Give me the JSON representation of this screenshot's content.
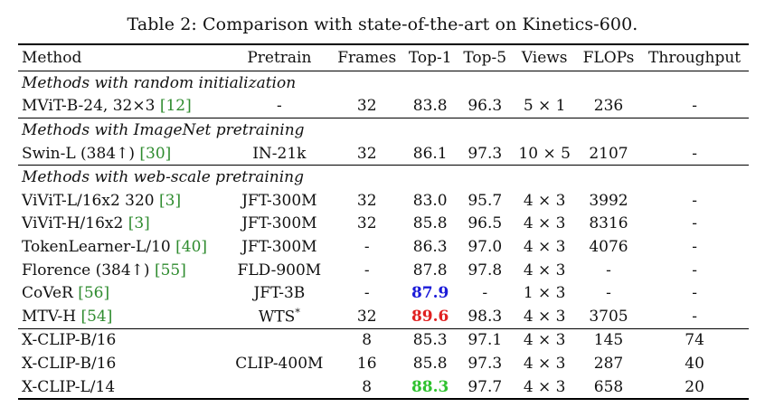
{
  "caption": "Table 2: Comparison with state-of-the-art on Kinetics-600.",
  "headers": [
    "Method",
    "Pretrain",
    "Frames",
    "Top-1",
    "Top-5",
    "Views",
    "FLOPs",
    "Throughput"
  ],
  "sections": [
    {
      "title": "Methods with random initialization",
      "rows": [
        {
          "method": "MViT-B-24, 32×3",
          "cite": "[12]",
          "pretrain": "-",
          "frames": "32",
          "top1": "83.8",
          "top5": "96.3",
          "views": "5 × 1",
          "flops": "236",
          "throughput": "-"
        }
      ]
    },
    {
      "title": "Methods with ImageNet pretraining",
      "rows": [
        {
          "method": "Swin-L (384↑)",
          "cite": "[30]",
          "pretrain": "IN-21k",
          "frames": "32",
          "top1": "86.1",
          "top5": "97.3",
          "views": "10 × 5",
          "flops": "2107",
          "throughput": "-"
        }
      ]
    },
    {
      "title": "Methods with web-scale pretraining",
      "rows": [
        {
          "method": "ViViT-L/16x2 320",
          "cite": "[3]",
          "pretrain": "JFT-300M",
          "frames": "32",
          "top1": "83.0",
          "top5": "95.7",
          "views": "4 × 3",
          "flops": "3992",
          "throughput": "-"
        },
        {
          "method": "ViViT-H/16x2",
          "cite": "[3]",
          "pretrain": "JFT-300M",
          "frames": "32",
          "top1": "85.8",
          "top5": "96.5",
          "views": "4 × 3",
          "flops": "8316",
          "throughput": "-"
        },
        {
          "method": "TokenLearner-L/10",
          "cite": "[40]",
          "pretrain": "JFT-300M",
          "frames": "-",
          "top1": "86.3",
          "top5": "97.0",
          "views": "4 × 3",
          "flops": "4076",
          "throughput": "-"
        },
        {
          "method": "Florence (384↑)",
          "cite": "[55]",
          "pretrain": "FLD-900M",
          "frames": "-",
          "top1": "87.8",
          "top5": "97.8",
          "views": "4 × 3",
          "flops": "-",
          "throughput": "-"
        },
        {
          "method": "CoVeR",
          "cite": "[56]",
          "pretrain": "JFT-3B",
          "frames": "-",
          "top1": "87.9",
          "top5": "-",
          "views": "1 × 3",
          "flops": "-",
          "throughput": "-"
        },
        {
          "method": "MTV-H",
          "cite": "[54]",
          "pretrain": "WTS",
          "pretrain_sup": "*",
          "frames": "32",
          "top1": "89.6",
          "top5": "98.3",
          "views": "4 × 3",
          "flops": "3705",
          "throughput": "-"
        }
      ]
    }
  ],
  "ours": {
    "pretrain": "CLIP-400M",
    "rows": [
      {
        "method": "X-CLIP-B/16",
        "frames": "8",
        "top1": "85.3",
        "top5": "97.1",
        "views": "4 × 3",
        "flops": "145",
        "throughput": "74"
      },
      {
        "method": "X-CLIP-B/16",
        "frames": "16",
        "top1": "85.8",
        "top5": "97.3",
        "views": "4 × 3",
        "flops": "287",
        "throughput": "40"
      },
      {
        "method": "X-CLIP-L/14",
        "frames": "8",
        "top1": "88.3",
        "top5": "97.7",
        "views": "4 × 3",
        "flops": "658",
        "throughput": "20"
      }
    ]
  },
  "colors": {
    "citation": "#2e8b2e",
    "first": "#e02020",
    "second": "#1a1ad8",
    "ours_best": "#2fc22f"
  }
}
